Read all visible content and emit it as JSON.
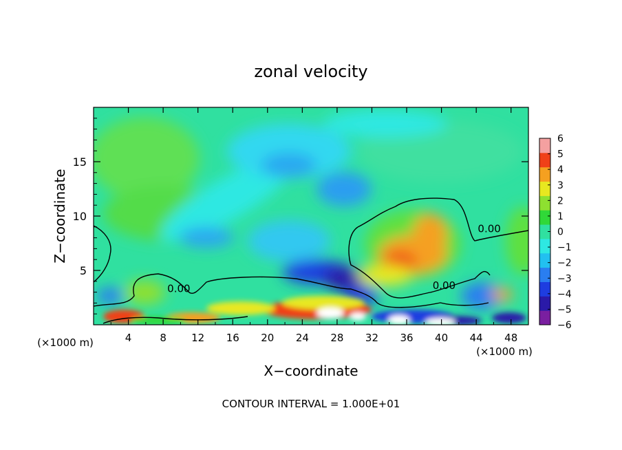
{
  "chart_data": {
    "type": "heatmap",
    "title": "zonal velocity",
    "xlabel": "X−coordinate",
    "ylabel": "Z−coordinate",
    "x_unit_left": "(×1000 m)",
    "x_unit_right": "(×1000 m)",
    "footer": "CONTOUR INTERVAL = 1.000E+01",
    "xlim": [
      0,
      50
    ],
    "ylim": [
      0,
      20
    ],
    "x_ticks": [
      4,
      8,
      12,
      16,
      20,
      24,
      28,
      32,
      36,
      40,
      44,
      48
    ],
    "x_tick_labels": [
      "4",
      "8",
      "12",
      "16",
      "20",
      "24",
      "28",
      "32",
      "36",
      "40",
      "44",
      "48"
    ],
    "y_ticks": [
      5,
      10,
      15
    ],
    "y_tick_labels": [
      "5",
      "10",
      "15"
    ],
    "colorbar": {
      "range": [
        -6,
        6
      ],
      "ticks": [
        6,
        5,
        4,
        3,
        2,
        1,
        0,
        -1,
        -2,
        -3,
        -4,
        -5,
        -6
      ],
      "tick_labels": [
        "6",
        "5",
        "4",
        "3",
        "2",
        "1",
        "0",
        "−1",
        "−2",
        "−3",
        "−4",
        "−5",
        "−6"
      ],
      "colors": [
        "#7a1fa0",
        "#2a1aa8",
        "#1e3de0",
        "#2a7ef0",
        "#22c0f0",
        "#2ee8e2",
        "#30e0a0",
        "#30d838",
        "#8ee030",
        "#e8e820",
        "#f5a020",
        "#f04018",
        "#f4a0a0"
      ]
    },
    "contour_labels": [
      {
        "text": "0.00",
        "x": 45.5,
        "z": 8.5
      },
      {
        "text": "0.00",
        "x": 40.3,
        "z": 3.3
      },
      {
        "text": "0.00",
        "x": 9.8,
        "z": 3.0
      }
    ],
    "features": [
      {
        "kind": "min",
        "x": 27,
        "z": 4.2,
        "value": -5.5
      },
      {
        "kind": "min",
        "x": 28,
        "z": 12.0,
        "value": -3
      },
      {
        "kind": "min",
        "x": 22,
        "z": 14.8,
        "value": -2.5
      },
      {
        "kind": "max",
        "x": 36,
        "z": 5.8,
        "value": 4
      },
      {
        "kind": "max",
        "x": 39,
        "z": 8.3,
        "value": 3.5
      },
      {
        "kind": "max",
        "x": 25,
        "z": 1.7,
        "value": 5
      }
    ]
  }
}
